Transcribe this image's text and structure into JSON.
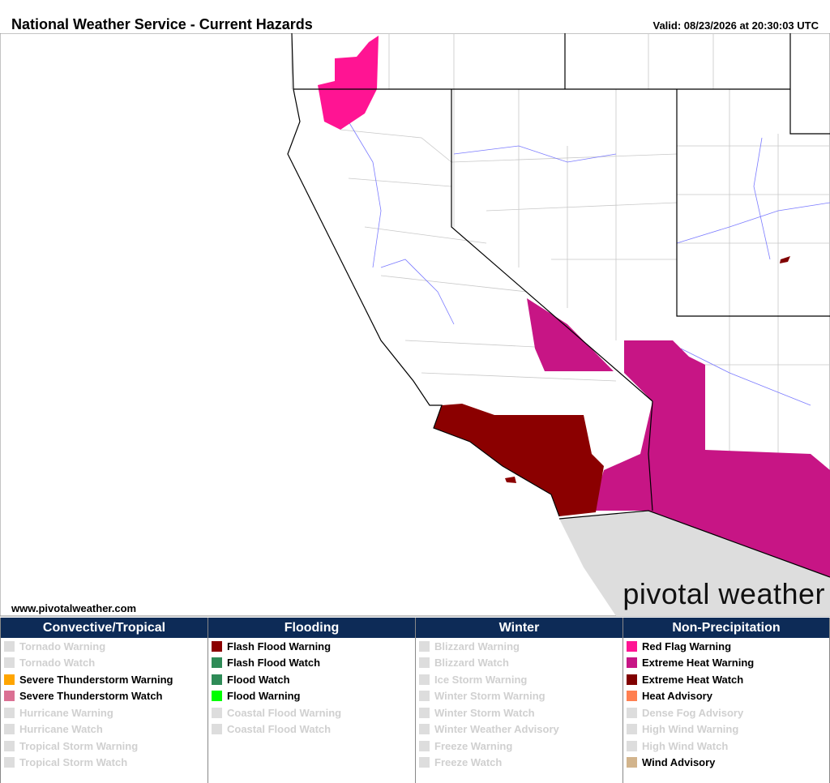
{
  "header": {
    "title": "National Weather Service - Current Hazards",
    "valid": "Valid: 08/23/2026 at 20:30:03 UTC"
  },
  "footer": {
    "site": "www.pivotalweather.com",
    "logo": "pivotal weather"
  },
  "legend": {
    "columns": [
      {
        "title": "Convective/Tropical",
        "items": [
          {
            "label": "Tornado Warning",
            "color": "#dddddd",
            "active": false
          },
          {
            "label": "Tornado Watch",
            "color": "#dddddd",
            "active": false
          },
          {
            "label": "Severe Thunderstorm Warning",
            "color": "#ffa500",
            "active": true
          },
          {
            "label": "Severe Thunderstorm Watch",
            "color": "#db7093",
            "active": true
          },
          {
            "label": "Hurricane Warning",
            "color": "#dddddd",
            "active": false
          },
          {
            "label": "Hurricane Watch",
            "color": "#dddddd",
            "active": false
          },
          {
            "label": "Tropical Storm Warning",
            "color": "#dddddd",
            "active": false
          },
          {
            "label": "Tropical Storm Watch",
            "color": "#dddddd",
            "active": false
          }
        ]
      },
      {
        "title": "Flooding",
        "items": [
          {
            "label": "Flash Flood Warning",
            "color": "#8b0000",
            "active": true
          },
          {
            "label": "Flash Flood Watch",
            "color": "#2e8b57",
            "active": true
          },
          {
            "label": "Flood Watch",
            "color": "#2e8b57",
            "active": true
          },
          {
            "label": "Flood Warning",
            "color": "#00ff00",
            "active": true
          },
          {
            "label": "Coastal Flood Warning",
            "color": "#dddddd",
            "active": false
          },
          {
            "label": "Coastal Flood Watch",
            "color": "#dddddd",
            "active": false
          }
        ]
      },
      {
        "title": "Winter",
        "items": [
          {
            "label": "Blizzard Warning",
            "color": "#dddddd",
            "active": false
          },
          {
            "label": "Blizzard Watch",
            "color": "#dddddd",
            "active": false
          },
          {
            "label": "Ice Storm Warning",
            "color": "#dddddd",
            "active": false
          },
          {
            "label": "Winter Storm Warning",
            "color": "#dddddd",
            "active": false
          },
          {
            "label": "Winter Storm Watch",
            "color": "#dddddd",
            "active": false
          },
          {
            "label": "Winter Weather Advisory",
            "color": "#dddddd",
            "active": false
          },
          {
            "label": "Freeze Warning",
            "color": "#dddddd",
            "active": false
          },
          {
            "label": "Freeze Watch",
            "color": "#dddddd",
            "active": false
          }
        ]
      },
      {
        "title": "Non-Precipitation",
        "items": [
          {
            "label": "Red Flag Warning",
            "color": "#ff1493",
            "active": true
          },
          {
            "label": "Extreme Heat Warning",
            "color": "#c71585",
            "active": true
          },
          {
            "label": "Extreme Heat Watch",
            "color": "#800000",
            "active": true
          },
          {
            "label": "Heat Advisory",
            "color": "#ff7f50",
            "active": true
          },
          {
            "label": "Dense Fog Advisory",
            "color": "#dddddd",
            "active": false
          },
          {
            "label": "High Wind Warning",
            "color": "#dddddd",
            "active": false
          },
          {
            "label": "High Wind Watch",
            "color": "#dddddd",
            "active": false
          },
          {
            "label": "Wind Advisory",
            "color": "#d2b48c",
            "active": true
          }
        ]
      }
    ]
  }
}
